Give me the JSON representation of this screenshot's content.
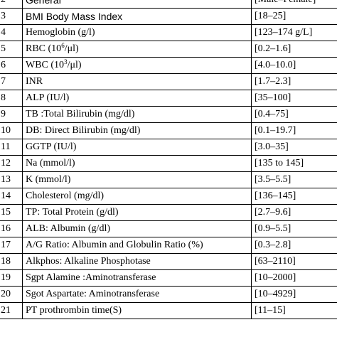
{
  "header": {
    "num": "2",
    "param": "General",
    "range": "[Male–Female]"
  },
  "rows": [
    {
      "num": "3",
      "param": "BMI Body Mass Index",
      "range": "[18–25]"
    },
    {
      "num": "4",
      "param": "Hemoglobin (g/l)",
      "range": "[123–174 g/L]"
    },
    {
      "num": "5",
      "param_pre": "RBC (10",
      "param_sup": "6",
      "param_post": "/μl)",
      "range": "[0.2–1.6]"
    },
    {
      "num": "6",
      "param_pre": "WBC (10",
      "param_sup": "3",
      "param_post": "/μl)",
      "range": "[4.0–10.0]"
    },
    {
      "num": "7",
      "param": "INR",
      "range": "[1.7–2.3]"
    },
    {
      "num": "8",
      "param": "ALP (IU/l)",
      "range": "[35–100]"
    },
    {
      "num": "9",
      "param": "TB :Total Bilirubin (mg/dl)",
      "range": "[0.4–75]"
    },
    {
      "num": "10",
      "param": "DB: Direct Bilirubin (mg/dl)",
      "range": "[0.1–19.7]"
    },
    {
      "num": "11",
      "param": "GGTP (IU/l)",
      "range": "[3.0–35]"
    },
    {
      "num": "12",
      "param": "Na (mmol/l)",
      "range": "[135 to 145]"
    },
    {
      "num": "13",
      "param": "K (mmol/l)",
      "range": "[3.5–5.5]"
    },
    {
      "num": "14",
      "param": "Cholesterol (mg/dl)",
      "range": "[136–145]"
    },
    {
      "num": "15",
      "param": "TP: Total Protein (g/dl)",
      "range": "[2.7–9.6]"
    },
    {
      "num": "16",
      "param": "ALB: Albumin (g/dl)",
      "range": "[0.9–5.5]"
    },
    {
      "num": "17",
      "param": "A/G Ratio: Albumin and Globulin Ratio (%)",
      "range": "[0.3–2.8]"
    },
    {
      "num": "18",
      "param": "Alkphos: Alkaline Phosphotase",
      "range": "[63–2110]"
    },
    {
      "num": "19",
      "param": "Sgpt Alamine :Aminotransferase",
      "range": "[10–2000]"
    },
    {
      "num": "20",
      "param": "Sgot Aspartate: Aminotransferase",
      "range": "[10–4929]"
    },
    {
      "num": "21",
      "param": "PT prothrombin time(S)",
      "range": "[11–15]"
    }
  ]
}
